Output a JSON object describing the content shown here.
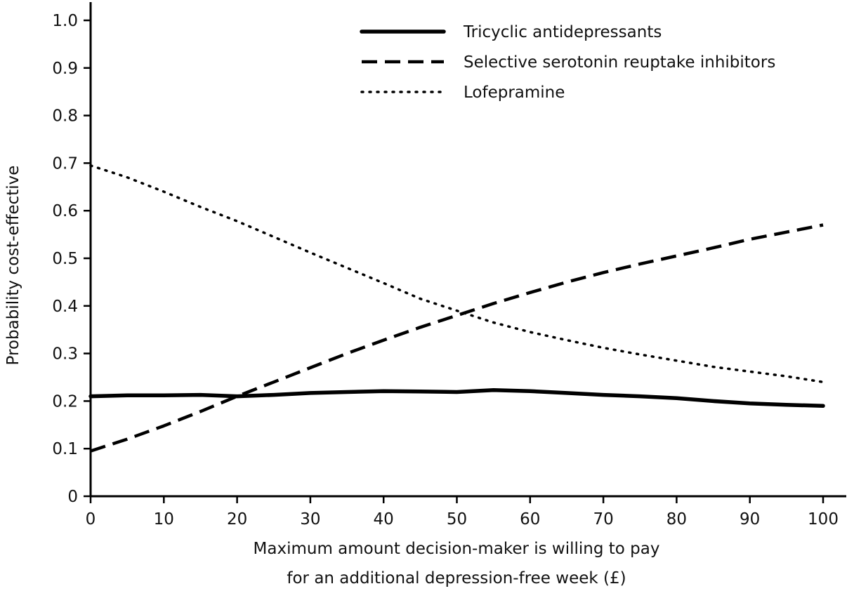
{
  "chart_data": {
    "type": "line",
    "title": "",
    "xlabel_lines": [
      "Maximum amount decision-maker is willing to pay",
      "for an additional depression-free week (£)"
    ],
    "ylabel": "Probability cost-effective",
    "xlim": [
      0,
      100
    ],
    "ylim": [
      0,
      1.0
    ],
    "x_ticks": [
      0,
      10,
      20,
      30,
      40,
      50,
      60,
      70,
      80,
      90,
      100
    ],
    "y_ticks": [
      0,
      0.1,
      0.2,
      0.3,
      0.4,
      0.5,
      0.6,
      0.7,
      0.8,
      0.9,
      1.0
    ],
    "y_tick_labels": [
      "0",
      "0.1",
      "0.2",
      "0.3",
      "0.4",
      "0.5",
      "0.6",
      "0.7",
      "0.8",
      "0.9",
      "1.0"
    ],
    "x_tick_labels": [
      "0",
      "10",
      "20",
      "30",
      "40",
      "50",
      "60",
      "70",
      "80",
      "90",
      "100"
    ],
    "grid": false,
    "legend_position": "top-right",
    "series": [
      {
        "name": "Tricyclic antidepressants",
        "style": "solid",
        "x": [
          0,
          5,
          10,
          15,
          20,
          25,
          30,
          35,
          40,
          45,
          50,
          55,
          60,
          65,
          70,
          75,
          80,
          85,
          90,
          95,
          100
        ],
        "y": [
          0.21,
          0.212,
          0.212,
          0.213,
          0.21,
          0.213,
          0.217,
          0.219,
          0.221,
          0.22,
          0.219,
          0.223,
          0.221,
          0.217,
          0.213,
          0.21,
          0.206,
          0.2,
          0.195,
          0.192,
          0.19
        ]
      },
      {
        "name": "Selective serotonin reuptake inhibitors",
        "style": "dashed",
        "x": [
          0,
          5,
          10,
          15,
          20,
          25,
          30,
          35,
          40,
          45,
          50,
          55,
          60,
          65,
          70,
          75,
          80,
          85,
          90,
          95,
          100
        ],
        "y": [
          0.095,
          0.12,
          0.148,
          0.178,
          0.21,
          0.24,
          0.27,
          0.3,
          0.328,
          0.355,
          0.38,
          0.405,
          0.428,
          0.45,
          0.47,
          0.488,
          0.505,
          0.522,
          0.54,
          0.555,
          0.57
        ]
      },
      {
        "name": "Lofepramine",
        "style": "dotted",
        "x": [
          0,
          5,
          10,
          15,
          20,
          25,
          30,
          35,
          40,
          45,
          50,
          55,
          60,
          65,
          70,
          75,
          80,
          85,
          90,
          95,
          100
        ],
        "y": [
          0.695,
          0.67,
          0.64,
          0.608,
          0.578,
          0.545,
          0.512,
          0.48,
          0.448,
          0.415,
          0.39,
          0.365,
          0.345,
          0.328,
          0.312,
          0.298,
          0.285,
          0.272,
          0.262,
          0.252,
          0.24
        ]
      }
    ]
  }
}
